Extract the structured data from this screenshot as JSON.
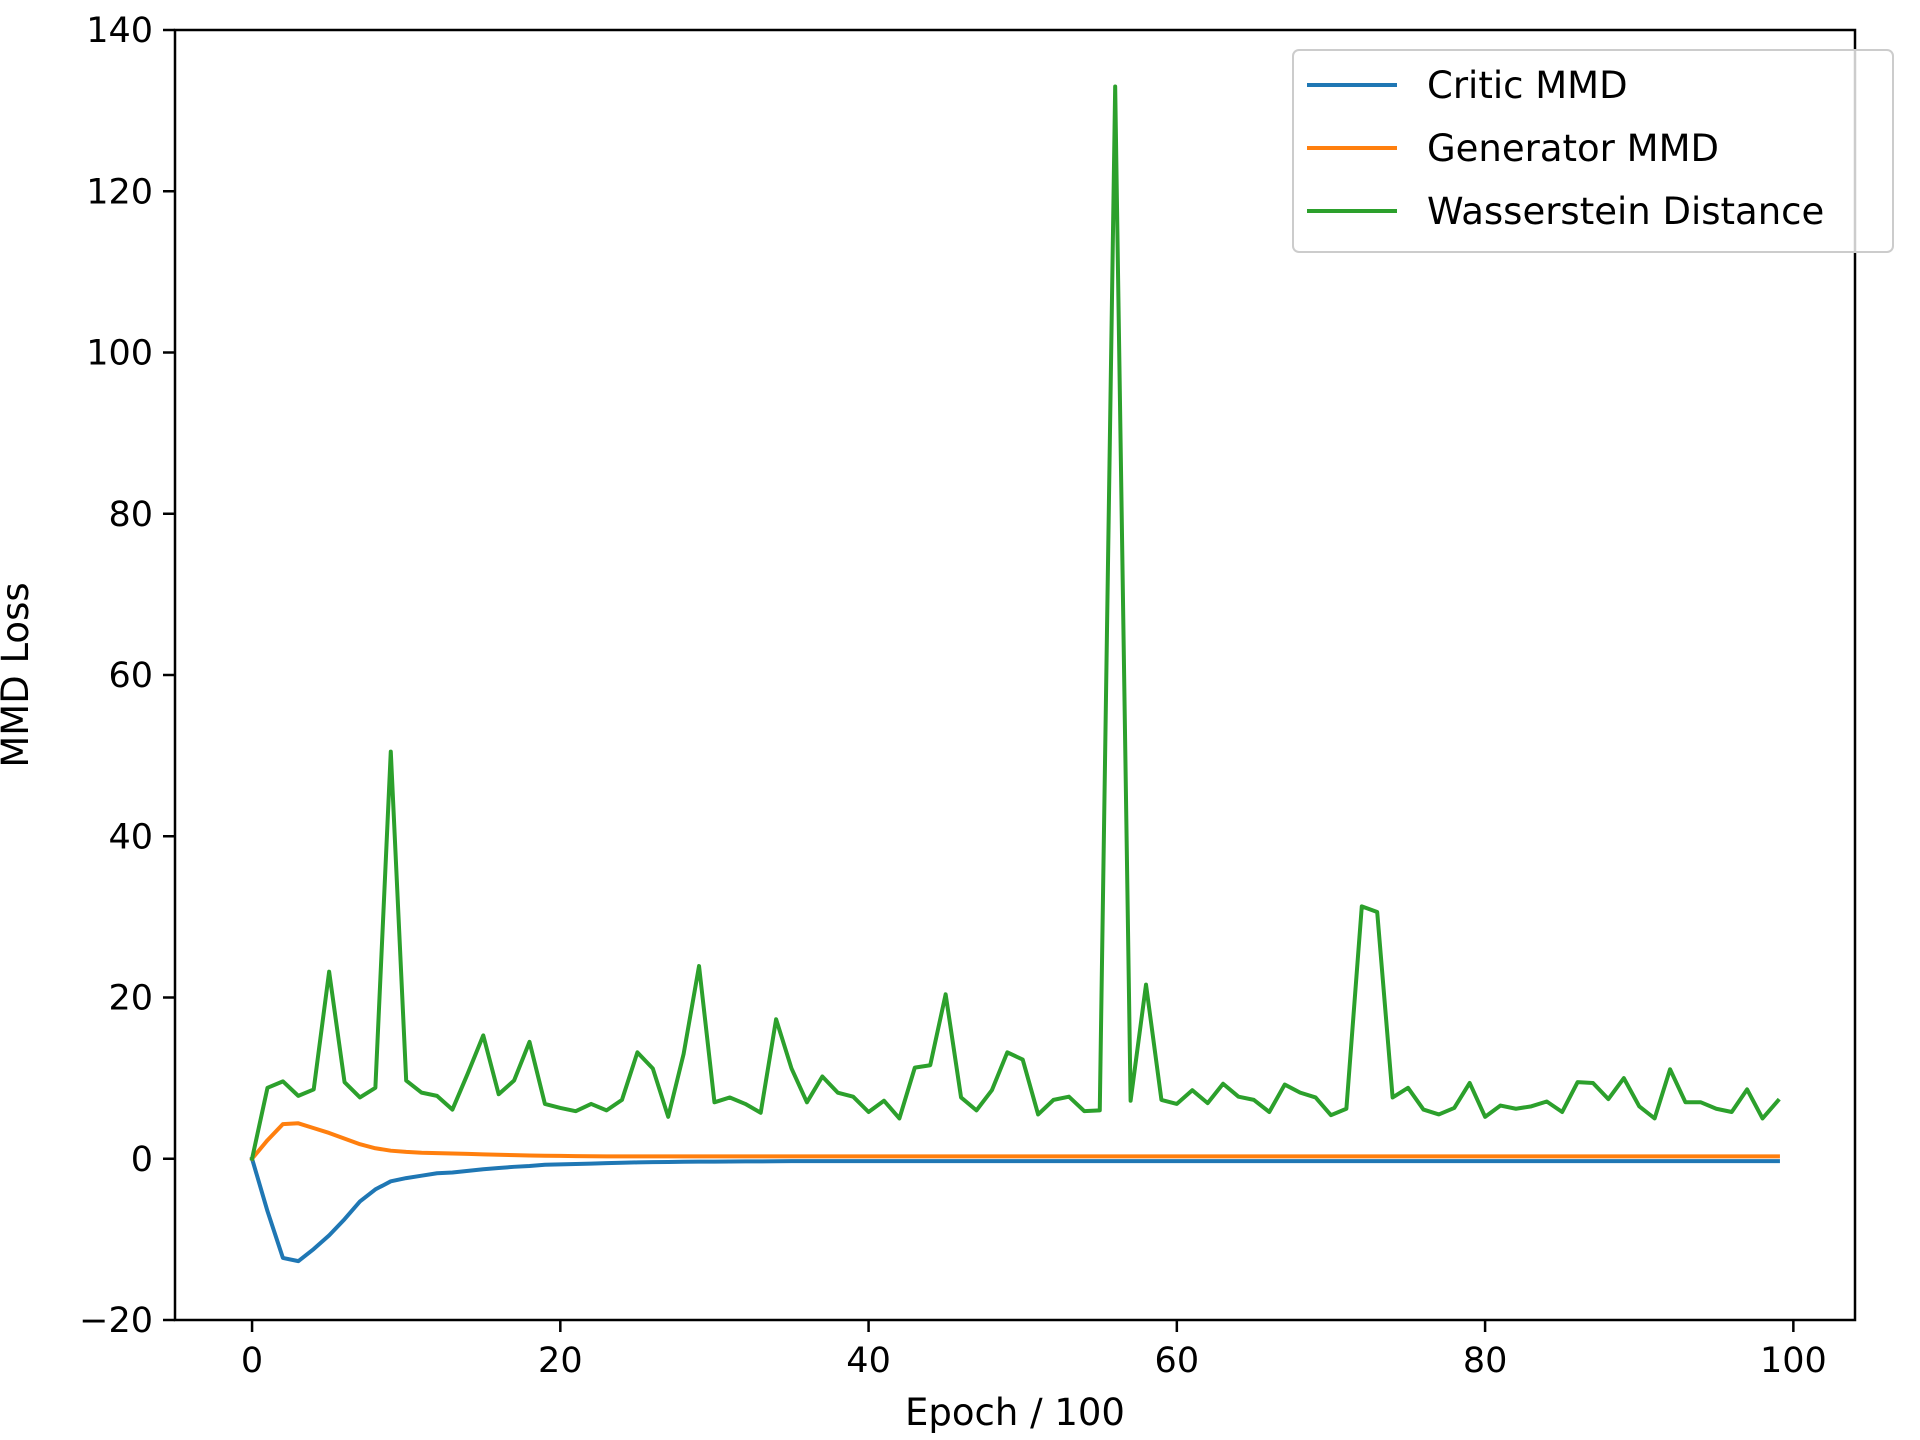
{
  "chart_data": {
    "type": "line",
    "title": "",
    "xlabel": "Epoch / 100",
    "ylabel": "MMD Loss",
    "xlim": [
      -5,
      104
    ],
    "ylim": [
      -20,
      140
    ],
    "xticks": [
      0,
      20,
      40,
      60,
      80,
      100
    ],
    "yticks": [
      -20,
      0,
      20,
      40,
      60,
      80,
      100,
      120,
      140
    ],
    "xtick_labels": [
      "0",
      "20",
      "40",
      "60",
      "80",
      "100"
    ],
    "ytick_labels": [
      "−20",
      "0",
      "20",
      "40",
      "60",
      "80",
      "100",
      "120",
      "140"
    ],
    "grid": false,
    "legend_position": "top-right",
    "series": [
      {
        "name": "Critic MMD",
        "color": "#1f77b4",
        "x": [
          0,
          1,
          2,
          3,
          4,
          5,
          6,
          7,
          8,
          9,
          10,
          11,
          12,
          13,
          14,
          15,
          16,
          17,
          18,
          19,
          20,
          21,
          22,
          23,
          24,
          25,
          26,
          27,
          28,
          29,
          30,
          31,
          32,
          33,
          34,
          35,
          36,
          37,
          38,
          39,
          40,
          41,
          42,
          43,
          44,
          45,
          46,
          47,
          48,
          49,
          50,
          51,
          52,
          53,
          54,
          55,
          56,
          57,
          58,
          59,
          60,
          61,
          62,
          63,
          64,
          65,
          66,
          67,
          68,
          69,
          70,
          71,
          72,
          73,
          74,
          75,
          76,
          77,
          78,
          79,
          80,
          81,
          82,
          83,
          84,
          85,
          86,
          87,
          88,
          89,
          90,
          91,
          92,
          93,
          94,
          95,
          96,
          97,
          98,
          99
        ],
        "values": [
          0,
          -6.5,
          -12.3,
          -12.7,
          -11.2,
          -9.5,
          -7.5,
          -5.3,
          -3.8,
          -2.8,
          -2.4,
          -2.1,
          -1.8,
          -1.7,
          -1.5,
          -1.3,
          -1.15,
          -1.0,
          -0.9,
          -0.75,
          -0.7,
          -0.65,
          -0.6,
          -0.55,
          -0.5,
          -0.45,
          -0.42,
          -0.4,
          -0.38,
          -0.36,
          -0.35,
          -0.34,
          -0.33,
          -0.32,
          -0.31,
          -0.3,
          -0.3,
          -0.3,
          -0.3,
          -0.3,
          -0.3,
          -0.3,
          -0.3,
          -0.3,
          -0.3,
          -0.3,
          -0.3,
          -0.3,
          -0.3,
          -0.3,
          -0.3,
          -0.3,
          -0.3,
          -0.3,
          -0.3,
          -0.3,
          -0.3,
          -0.3,
          -0.3,
          -0.3,
          -0.3,
          -0.3,
          -0.3,
          -0.3,
          -0.3,
          -0.3,
          -0.3,
          -0.3,
          -0.3,
          -0.3,
          -0.3,
          -0.3,
          -0.3,
          -0.3,
          -0.3,
          -0.3,
          -0.3,
          -0.3,
          -0.3,
          -0.3,
          -0.3,
          -0.3,
          -0.3,
          -0.3,
          -0.3,
          -0.3,
          -0.3,
          -0.3,
          -0.3,
          -0.3,
          -0.3,
          -0.3,
          -0.3,
          -0.3,
          -0.3,
          -0.3,
          -0.3,
          -0.3,
          -0.3,
          -0.3
        ]
      },
      {
        "name": "Generator MMD",
        "color": "#ff7f0e",
        "x": [
          0,
          1,
          2,
          3,
          4,
          5,
          6,
          7,
          8,
          9,
          10,
          11,
          12,
          13,
          14,
          15,
          16,
          17,
          18,
          19,
          20,
          21,
          22,
          23,
          24,
          25,
          26,
          27,
          28,
          29,
          30,
          31,
          32,
          33,
          34,
          35,
          36,
          37,
          38,
          39,
          40,
          41,
          42,
          43,
          44,
          45,
          46,
          47,
          48,
          49,
          50,
          51,
          52,
          53,
          54,
          55,
          56,
          57,
          58,
          59,
          60,
          61,
          62,
          63,
          64,
          65,
          66,
          67,
          68,
          69,
          70,
          71,
          72,
          73,
          74,
          75,
          76,
          77,
          78,
          79,
          80,
          81,
          82,
          83,
          84,
          85,
          86,
          87,
          88,
          89,
          90,
          91,
          92,
          93,
          94,
          95,
          96,
          97,
          98,
          99
        ],
        "values": [
          0,
          2.3,
          4.3,
          4.4,
          3.8,
          3.2,
          2.5,
          1.8,
          1.3,
          1.0,
          0.85,
          0.75,
          0.7,
          0.65,
          0.6,
          0.55,
          0.5,
          0.45,
          0.4,
          0.38,
          0.35,
          0.33,
          0.31,
          0.3,
          0.3,
          0.3,
          0.3,
          0.3,
          0.3,
          0.3,
          0.3,
          0.3,
          0.3,
          0.3,
          0.3,
          0.3,
          0.3,
          0.3,
          0.3,
          0.3,
          0.3,
          0.3,
          0.3,
          0.3,
          0.3,
          0.3,
          0.3,
          0.3,
          0.3,
          0.3,
          0.3,
          0.3,
          0.3,
          0.3,
          0.3,
          0.3,
          0.3,
          0.3,
          0.3,
          0.3,
          0.3,
          0.3,
          0.3,
          0.3,
          0.3,
          0.3,
          0.3,
          0.3,
          0.3,
          0.3,
          0.3,
          0.3,
          0.3,
          0.3,
          0.3,
          0.3,
          0.3,
          0.3,
          0.3,
          0.3,
          0.3,
          0.3,
          0.3,
          0.3,
          0.3,
          0.3,
          0.3,
          0.3,
          0.3,
          0.3,
          0.3,
          0.3,
          0.3,
          0.3,
          0.3,
          0.3,
          0.3,
          0.3,
          0.3,
          0.3
        ]
      },
      {
        "name": "Wasserstein Distance",
        "color": "#2ca02c",
        "x": [
          0,
          1,
          2,
          3,
          4,
          5,
          6,
          7,
          8,
          9,
          10,
          11,
          12,
          13,
          14,
          15,
          16,
          17,
          18,
          19,
          20,
          21,
          22,
          23,
          24,
          25,
          26,
          27,
          28,
          29,
          30,
          31,
          32,
          33,
          34,
          35,
          36,
          37,
          38,
          39,
          40,
          41,
          42,
          43,
          44,
          45,
          46,
          47,
          48,
          49,
          50,
          51,
          52,
          53,
          54,
          55,
          56,
          57,
          58,
          59,
          60,
          61,
          62,
          63,
          64,
          65,
          66,
          67,
          68,
          69,
          70,
          71,
          72,
          73,
          74,
          75,
          76,
          77,
          78,
          79,
          80,
          81,
          82,
          83,
          84,
          85,
          86,
          87,
          88,
          89,
          90,
          91,
          92,
          93,
          94,
          95,
          96,
          97,
          98,
          99
        ],
        "values": [
          0,
          8.8,
          9.6,
          7.8,
          8.6,
          23.2,
          9.5,
          7.6,
          8.8,
          50.5,
          9.7,
          8.2,
          7.8,
          6.1,
          10.6,
          15.3,
          8.0,
          9.7,
          14.5,
          6.8,
          6.3,
          5.9,
          6.8,
          6.0,
          7.3,
          13.2,
          11.2,
          5.2,
          13.0,
          23.9,
          7.0,
          7.6,
          6.8,
          5.7,
          17.3,
          11.2,
          7.0,
          10.2,
          8.2,
          7.7,
          5.8,
          7.2,
          5.0,
          11.3,
          11.6,
          20.4,
          7.6,
          6.0,
          8.5,
          13.2,
          12.3,
          5.5,
          7.3,
          7.7,
          5.9,
          6.0,
          133.0,
          7.2,
          21.6,
          7.3,
          6.8,
          8.5,
          6.9,
          9.3,
          7.7,
          7.3,
          5.8,
          9.2,
          8.2,
          7.6,
          5.4,
          6.2,
          31.3,
          30.6,
          7.6,
          8.8,
          6.1,
          5.5,
          6.3,
          9.4,
          5.2,
          6.6,
          6.2,
          6.5,
          7.1,
          5.8,
          9.5,
          9.4,
          7.4,
          10.0,
          6.5,
          5.0,
          11.1,
          7.0,
          7.0,
          6.2,
          5.8,
          8.6,
          5.0,
          7.2
        ]
      }
    ]
  }
}
